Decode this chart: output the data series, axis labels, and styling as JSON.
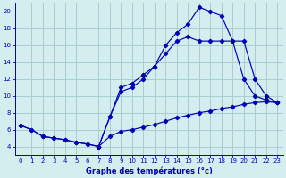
{
  "bg_color": "#d4eef0",
  "grid_color": "#a8cdd0",
  "line_color": "#0000bb",
  "xlabel": "Graphe des températures (°c)",
  "xlim": [
    -0.5,
    23.5
  ],
  "ylim": [
    3.0,
    21.0
  ],
  "xticks": [
    0,
    1,
    2,
    3,
    4,
    5,
    6,
    7,
    8,
    9,
    10,
    11,
    12,
    13,
    14,
    15,
    16,
    17,
    18,
    19,
    20,
    21,
    22,
    23
  ],
  "yticks": [
    4,
    6,
    8,
    10,
    12,
    14,
    16,
    18,
    20
  ],
  "line1_x": [
    0,
    1,
    2,
    3,
    4,
    5,
    6,
    7,
    8,
    9,
    10,
    11,
    12,
    13,
    14,
    15,
    16,
    17,
    18,
    19,
    20,
    21,
    22,
    23
  ],
  "line1_y": [
    6.5,
    6.0,
    5.2,
    5.0,
    4.8,
    4.5,
    4.3,
    4.0,
    5.2,
    5.8,
    6.0,
    6.3,
    6.6,
    7.0,
    7.4,
    7.7,
    8.0,
    8.2,
    8.5,
    8.7,
    9.0,
    9.2,
    9.3,
    9.2
  ],
  "line2_x": [
    0,
    1,
    2,
    3,
    4,
    5,
    6,
    7,
    8,
    9,
    10,
    11,
    12,
    13,
    14,
    15,
    16,
    17,
    18,
    19,
    20,
    21,
    22,
    23
  ],
  "line2_y": [
    6.5,
    6.0,
    5.2,
    5.0,
    4.8,
    4.5,
    4.3,
    4.0,
    7.5,
    10.5,
    11.0,
    12.0,
    13.5,
    16.0,
    17.5,
    18.5,
    20.5,
    20.0,
    19.5,
    16.5,
    12.0,
    10.0,
    9.5,
    9.2
  ],
  "line3_x": [
    7,
    8,
    9,
    10,
    11,
    12,
    13,
    14,
    15,
    16,
    17,
    18,
    19,
    20,
    21,
    22,
    23
  ],
  "line3_y": [
    4.0,
    7.5,
    11.0,
    11.5,
    12.5,
    13.5,
    15.0,
    16.5,
    17.0,
    16.5,
    16.5,
    16.5,
    16.5,
    16.5,
    12.0,
    10.0,
    9.2
  ]
}
